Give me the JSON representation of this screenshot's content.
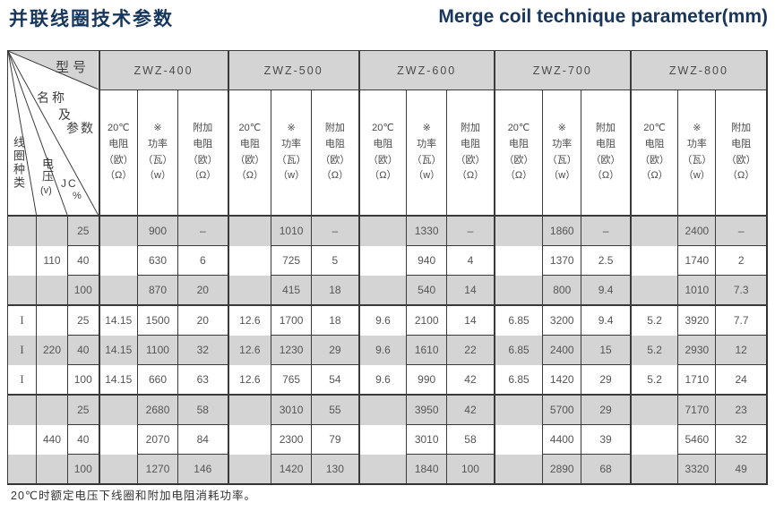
{
  "page": {
    "title_zh": "并联线圈技术参数",
    "title_en": "Merge coil technique parameter(mm)",
    "footnote": "20℃时额定电压下线圈和附加电阻消耗功率。"
  },
  "colors": {
    "title_blue": "#17365d",
    "cell_gray": "#d4d4d4",
    "border": "#3a3a3a",
    "text": "#4a4a4a"
  },
  "table": {
    "corner": {
      "model_label": "型号",
      "name_label": "名称",
      "and_label": "及",
      "param_label": "参数",
      "coil_type_label": "线圈种类",
      "voltage_label": "电压",
      "voltage_unit": "(v)",
      "jc_label": "JC",
      "jc_unit": "%"
    },
    "models": [
      "ZWZ-400",
      "ZWZ-500",
      "ZWZ-600",
      "ZWZ-700",
      "ZWZ-800"
    ],
    "sub_headers": {
      "resistance": [
        "20℃",
        "电阻",
        "（欧）",
        "（Ω）"
      ],
      "power": [
        "※",
        "功率",
        "（瓦）",
        "（w）"
      ],
      "extra_resistance": [
        "附加",
        "电阻",
        "（欧）",
        "（Ω）"
      ]
    },
    "rows": [
      {
        "coil_type": "",
        "voltage": "",
        "jc": "25",
        "values": [
          "",
          "900",
          "–",
          "",
          "1010",
          "–",
          "",
          "1330",
          "–",
          "",
          "1860",
          "–",
          "",
          "2400",
          "–"
        ]
      },
      {
        "coil_type": "",
        "voltage": "110",
        "jc": "40",
        "values": [
          "",
          "630",
          "6",
          "",
          "725",
          "5",
          "",
          "940",
          "4",
          "",
          "1370",
          "2.5",
          "",
          "1740",
          "2"
        ]
      },
      {
        "coil_type": "",
        "voltage": "",
        "jc": "100",
        "values": [
          "",
          "870",
          "20",
          "",
          "415",
          "18",
          "",
          "540",
          "14",
          "",
          "800",
          "9.4",
          "",
          "1010",
          "7.3"
        ]
      },
      {
        "coil_type": "I",
        "voltage": "",
        "jc": "25",
        "values": [
          "14.15",
          "1500",
          "20",
          "12.6",
          "1700",
          "18",
          "9.6",
          "2100",
          "14",
          "6.85",
          "3200",
          "9.4",
          "5.2",
          "3920",
          "7.7"
        ]
      },
      {
        "coil_type": "I",
        "voltage": "220",
        "jc": "40",
        "values": [
          "14.15",
          "1100",
          "32",
          "12.6",
          "1230",
          "29",
          "9.6",
          "1610",
          "22",
          "6.85",
          "2400",
          "15",
          "5.2",
          "2930",
          "12"
        ]
      },
      {
        "coil_type": "I",
        "voltage": "",
        "jc": "100",
        "values": [
          "14.15",
          "660",
          "63",
          "12.6",
          "765",
          "54",
          "9.6",
          "990",
          "42",
          "6.85",
          "1420",
          "29",
          "5.2",
          "1710",
          "24"
        ]
      },
      {
        "coil_type": "",
        "voltage": "",
        "jc": "25",
        "values": [
          "",
          "2680",
          "58",
          "",
          "3010",
          "55",
          "",
          "3950",
          "42",
          "",
          "5700",
          "29",
          "",
          "7170",
          "23"
        ]
      },
      {
        "coil_type": "",
        "voltage": "440",
        "jc": "40",
        "values": [
          "",
          "2070",
          "84",
          "",
          "2300",
          "79",
          "",
          "3010",
          "58",
          "",
          "4400",
          "39",
          "",
          "5460",
          "32"
        ]
      },
      {
        "coil_type": "",
        "voltage": "",
        "jc": "100",
        "values": [
          "",
          "1270",
          "146",
          "",
          "1420",
          "130",
          "",
          "1840",
          "100",
          "",
          "2890",
          "68",
          "",
          "3320",
          "49"
        ]
      }
    ]
  }
}
